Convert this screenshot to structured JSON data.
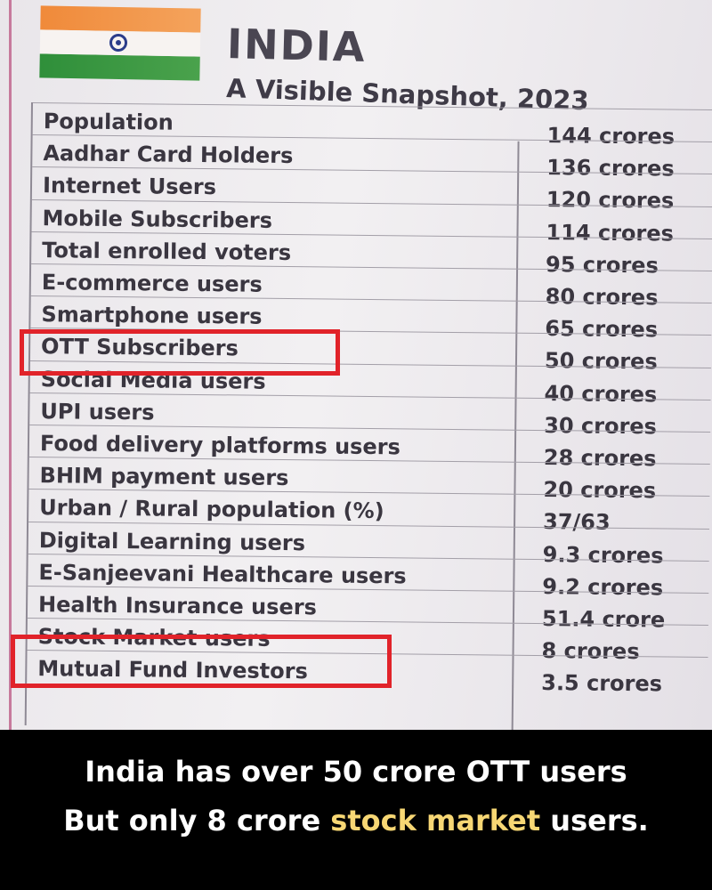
{
  "header": {
    "title": "INDIA",
    "subtitle": "A Visible Snapshot, 2023"
  },
  "table": {
    "rows": [
      {
        "label": "Population",
        "value": "144 crores"
      },
      {
        "label": "Aadhar Card Holders",
        "value": "136 crores"
      },
      {
        "label": "Internet Users",
        "value": "120 crores"
      },
      {
        "label": "Mobile Subscribers",
        "value": "114 crores"
      },
      {
        "label": "Total enrolled voters",
        "value": "95 crores"
      },
      {
        "label": "E-commerce users",
        "value": "80 crores"
      },
      {
        "label": "Smartphone users",
        "value": "65 crores"
      },
      {
        "label": "OTT Subscribers",
        "value": "50 crores"
      },
      {
        "label": "Social Media users",
        "value": "40 crores"
      },
      {
        "label": "UPI users",
        "value": "30 crores"
      },
      {
        "label": "Food delivery platforms users",
        "value": "28 crores"
      },
      {
        "label": "BHIM payment users",
        "value": "20 crores"
      },
      {
        "label": "Urban / Rural population (%)",
        "value": "37/63"
      },
      {
        "label": "Digital Learning users",
        "value": "9.3 crores"
      },
      {
        "label": "E-Sanjeevani Healthcare users",
        "value": "9.2 crores"
      },
      {
        "label": "Health Insurance users",
        "value": "51.4 crore"
      },
      {
        "label": "Stock Market users",
        "value": "8 crores"
      },
      {
        "label": "Mutual Fund Investors",
        "value": "3.5 crores"
      }
    ]
  },
  "caption": {
    "line1": "India has over 50 crore OTT users",
    "line2_prefix": "But only 8 crore ",
    "line2_highlight": "stock market",
    "line2_suffix": " users."
  },
  "colors": {
    "highlight_box": "#e1232a",
    "caption_accent": "#f7d774"
  }
}
